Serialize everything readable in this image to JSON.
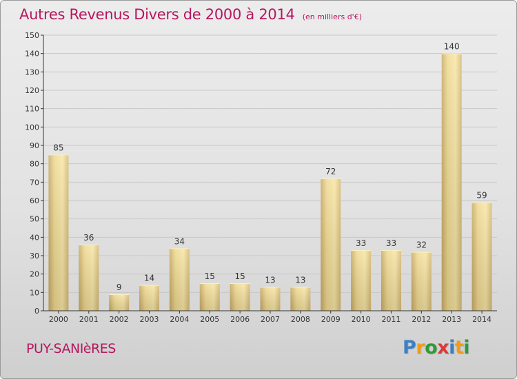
{
  "header": {
    "title": "Autres Revenus Divers de 2000 à 2014",
    "subtitle": "(en milliers d'€)"
  },
  "footer": {
    "place": "PUY-SANIèRES",
    "logo_text": "Proxiti",
    "logo_colors": [
      "#3b7fc4",
      "#f39c12",
      "#2e9b3a",
      "#d93a3a",
      "#3b7fc4",
      "#f39c12",
      "#2e9b3a"
    ]
  },
  "colors": {
    "title": "#b5175f",
    "bar_light": "#f7e4a0",
    "bar_dark": "#c7a75f",
    "axis": "#333333",
    "grid": "#c8c8c8"
  },
  "chart_data": {
    "type": "bar",
    "categories": [
      "2000",
      "2001",
      "2002",
      "2003",
      "2004",
      "2005",
      "2006",
      "2007",
      "2008",
      "2009",
      "2010",
      "2011",
      "2012",
      "2013",
      "2014"
    ],
    "values": [
      85,
      36,
      9,
      14,
      34,
      15,
      15,
      13,
      13,
      72,
      33,
      33,
      32,
      140,
      59
    ],
    "ylim": [
      0,
      150
    ],
    "yticks": [
      0,
      10,
      20,
      30,
      40,
      50,
      60,
      70,
      80,
      90,
      100,
      110,
      120,
      130,
      140,
      150
    ],
    "data_labels": true,
    "grid": true
  }
}
